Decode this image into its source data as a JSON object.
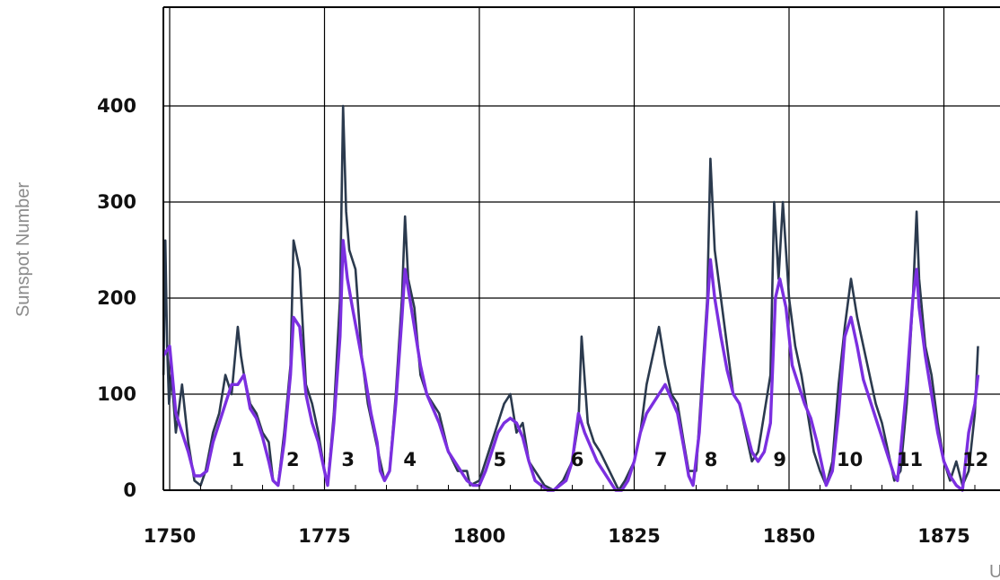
{
  "chart_data": {
    "type": "line",
    "title": "",
    "ylabel": "Sunspot Number",
    "xlabel_partial": "U",
    "xlim": [
      1748.5,
      1880.5
    ],
    "ylim": [
      0,
      500
    ],
    "x_ticks": [
      1750,
      1775,
      1800,
      1825,
      1850,
      1875
    ],
    "x_tick_labels": [
      "1750",
      "1775",
      "1800",
      "1825",
      "1850",
      "1875"
    ],
    "y_ticks": [
      0,
      100,
      200,
      300,
      400
    ],
    "y_tick_labels": [
      "0",
      "100",
      "200",
      "300",
      "400"
    ],
    "grid": true,
    "colors": {
      "monthly": "#2b3a4e",
      "smoothed": "#7b2fe0",
      "grid": "#000000"
    },
    "series": [
      {
        "id": "monthly",
        "x": [
          1749.0,
          1749.3,
          1749.6,
          1749.9,
          1750.3,
          1751.0,
          1752.0,
          1753.0,
          1754.0,
          1755.0,
          1755.8,
          1757.0,
          1758.0,
          1759.0,
          1760.0,
          1761.0,
          1761.5,
          1762.0,
          1763.0,
          1764.0,
          1765.0,
          1766.0,
          1766.7,
          1767.5,
          1768.5,
          1769.5,
          1770.0,
          1771.0,
          1772.0,
          1773.0,
          1774.0,
          1775.0,
          1775.5,
          1776.5,
          1777.5,
          1778.0,
          1778.5,
          1779.0,
          1780.0,
          1781.0,
          1782.0,
          1783.0,
          1784.0,
          1784.7,
          1785.5,
          1786.5,
          1787.5,
          1788.0,
          1788.5,
          1789.5,
          1790.5,
          1791.5,
          1792.5,
          1793.5,
          1795.0,
          1796.5,
          1798.0,
          1798.5,
          1800.0,
          1801.5,
          1803.0,
          1804.0,
          1805.0,
          1806.0,
          1807.0,
          1808.0,
          1809.0,
          1810.5,
          1812.0,
          1813.5,
          1815.0,
          1816.0,
          1816.5,
          1817.5,
          1818.5,
          1819.5,
          1821.0,
          1822.5,
          1823.5,
          1825.0,
          1826.0,
          1827.0,
          1828.0,
          1829.0,
          1830.0,
          1831.0,
          1832.0,
          1833.0,
          1833.8,
          1835.0,
          1836.0,
          1836.8,
          1837.3,
          1838.0,
          1839.0,
          1840.0,
          1841.0,
          1842.0,
          1843.0,
          1844.0,
          1845.0,
          1846.0,
          1847.0,
          1847.6,
          1848.3,
          1849.0,
          1850.0,
          1851.0,
          1852.0,
          1853.0,
          1854.0,
          1855.0,
          1856.0,
          1857.0,
          1858.0,
          1859.0,
          1860.0,
          1861.0,
          1862.0,
          1863.0,
          1864.0,
          1865.0,
          1866.0,
          1867.0,
          1868.0,
          1869.0,
          1870.0,
          1870.6,
          1871.0,
          1872.0,
          1873.0,
          1874.0,
          1875.0,
          1876.0,
          1877.0,
          1878.0,
          1879.0,
          1880.0,
          1880.5
        ],
        "y": [
          120,
          260,
          150,
          90,
          120,
          60,
          110,
          50,
          10,
          5,
          20,
          60,
          80,
          120,
          100,
          170,
          140,
          120,
          90,
          80,
          60,
          50,
          10,
          5,
          60,
          130,
          260,
          230,
          110,
          90,
          60,
          20,
          5,
          80,
          200,
          400,
          290,
          250,
          230,
          140,
          90,
          60,
          30,
          10,
          20,
          100,
          200,
          285,
          220,
          190,
          120,
          100,
          90,
          80,
          40,
          20,
          20,
          5,
          10,
          40,
          70,
          90,
          100,
          60,
          70,
          30,
          20,
          5,
          0,
          10,
          30,
          70,
          160,
          70,
          50,
          40,
          20,
          0,
          10,
          30,
          60,
          110,
          140,
          170,
          130,
          100,
          90,
          50,
          20,
          20,
          120,
          200,
          345,
          250,
          200,
          150,
          100,
          90,
          60,
          30,
          40,
          80,
          120,
          300,
          220,
          300,
          200,
          150,
          120,
          80,
          40,
          20,
          5,
          30,
          110,
          170,
          220,
          180,
          150,
          120,
          90,
          70,
          40,
          10,
          20,
          90,
          200,
          290,
          220,
          150,
          120,
          70,
          30,
          10,
          30,
          5,
          20,
          80,
          150
        ]
      },
      {
        "id": "smoothed",
        "x": [
          1749.0,
          1750.0,
          1751.0,
          1752.0,
          1753.0,
          1754.0,
          1755.0,
          1756.0,
          1757.0,
          1758.0,
          1759.0,
          1760.0,
          1761.0,
          1762.0,
          1763.0,
          1764.0,
          1765.0,
          1766.0,
          1766.7,
          1767.5,
          1768.5,
          1769.5,
          1770.0,
          1771.0,
          1772.0,
          1773.0,
          1774.0,
          1775.0,
          1775.5,
          1776.5,
          1777.5,
          1778.0,
          1778.7,
          1779.5,
          1780.5,
          1781.5,
          1782.5,
          1783.5,
          1784.0,
          1784.7,
          1785.5,
          1786.5,
          1787.5,
          1788.0,
          1788.5,
          1789.5,
          1790.5,
          1791.5,
          1792.5,
          1793.5,
          1795.0,
          1796.5,
          1798.0,
          1799.0,
          1800.0,
          1801.0,
          1802.0,
          1803.0,
          1804.0,
          1805.0,
          1806.0,
          1807.0,
          1808.0,
          1809.0,
          1810.0,
          1811.0,
          1812.0,
          1813.0,
          1814.0,
          1815.0,
          1816.0,
          1817.0,
          1818.0,
          1819.0,
          1820.0,
          1821.0,
          1822.0,
          1823.0,
          1824.0,
          1825.0,
          1826.0,
          1827.0,
          1828.0,
          1829.0,
          1830.0,
          1831.0,
          1832.0,
          1833.0,
          1833.8,
          1834.5,
          1835.5,
          1836.5,
          1837.3,
          1838.0,
          1839.0,
          1840.0,
          1841.0,
          1842.0,
          1843.0,
          1844.0,
          1845.0,
          1846.0,
          1847.0,
          1847.8,
          1848.5,
          1849.5,
          1850.5,
          1851.5,
          1852.5,
          1853.5,
          1854.5,
          1855.5,
          1856.0,
          1857.0,
          1858.0,
          1859.0,
          1860.0,
          1861.0,
          1862.0,
          1863.0,
          1864.0,
          1865.0,
          1866.0,
          1867.0,
          1867.5,
          1868.0,
          1869.0,
          1870.0,
          1870.6,
          1871.0,
          1872.0,
          1873.0,
          1874.0,
          1875.0,
          1876.0,
          1877.0,
          1878.0,
          1879.0,
          1880.0,
          1880.5
        ],
        "y": [
          140,
          150,
          80,
          60,
          40,
          15,
          15,
          20,
          50,
          70,
          90,
          110,
          110,
          120,
          85,
          75,
          55,
          30,
          10,
          5,
          50,
          120,
          180,
          170,
          100,
          70,
          50,
          20,
          5,
          70,
          160,
          260,
          220,
          190,
          155,
          120,
          80,
          50,
          20,
          10,
          20,
          90,
          180,
          230,
          210,
          170,
          130,
          100,
          85,
          70,
          40,
          25,
          10,
          5,
          5,
          20,
          40,
          60,
          70,
          75,
          70,
          55,
          30,
          10,
          5,
          0,
          0,
          5,
          10,
          30,
          80,
          60,
          45,
          30,
          20,
          10,
          0,
          0,
          10,
          30,
          60,
          80,
          90,
          100,
          110,
          95,
          80,
          45,
          15,
          5,
          60,
          160,
          240,
          200,
          160,
          125,
          100,
          90,
          65,
          40,
          30,
          40,
          70,
          200,
          220,
          190,
          130,
          110,
          90,
          75,
          50,
          20,
          5,
          20,
          80,
          160,
          180,
          150,
          115,
          95,
          75,
          55,
          35,
          15,
          10,
          40,
          110,
          200,
          230,
          190,
          140,
          100,
          60,
          30,
          15,
          5,
          0,
          60,
          90,
          120
        ]
      }
    ],
    "cycle_labels": [
      {
        "text": "1",
        "x": 1761.0
      },
      {
        "text": "2",
        "x": 1769.9
      },
      {
        "text": "3",
        "x": 1778.8
      },
      {
        "text": "4",
        "x": 1788.8
      },
      {
        "text": "5",
        "x": 1803.3
      },
      {
        "text": "6",
        "x": 1815.8
      },
      {
        "text": "7",
        "x": 1829.3
      },
      {
        "text": "8",
        "x": 1837.4
      },
      {
        "text": "9",
        "x": 1848.5
      },
      {
        "text": "10",
        "x": 1859.8
      },
      {
        "text": "11",
        "x": 1869.5
      },
      {
        "text": "12",
        "x": 1880.1
      }
    ]
  }
}
